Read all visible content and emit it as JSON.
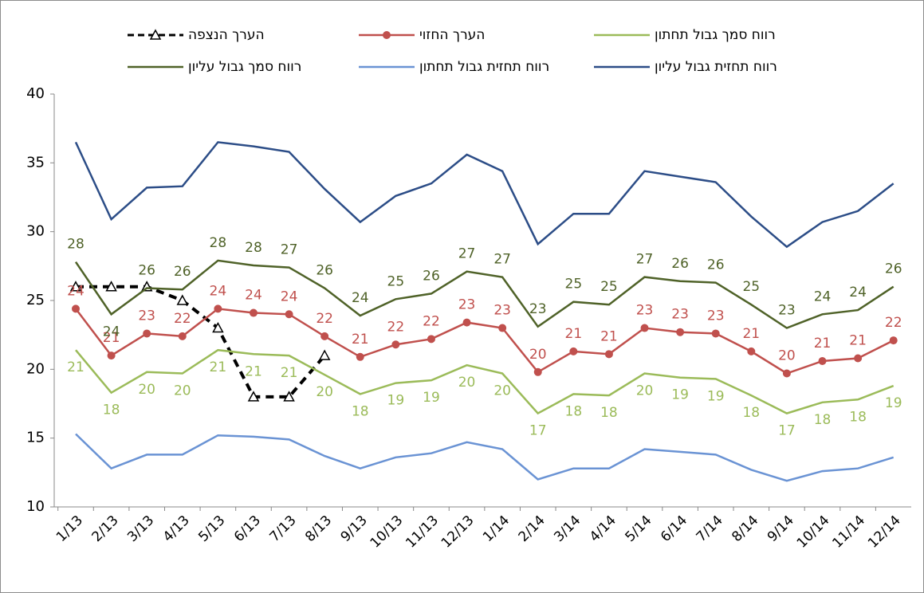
{
  "chart_data": {
    "type": "line",
    "categories": [
      "1/13",
      "2/13",
      "3/13",
      "4/13",
      "5/13",
      "6/13",
      "7/13",
      "8/13",
      "9/13",
      "10/13",
      "11/13",
      "12/13",
      "1/14",
      "2/14",
      "3/14",
      "4/14",
      "5/14",
      "6/14",
      "7/14",
      "8/14",
      "9/14",
      "10/14",
      "11/14",
      "12/14"
    ],
    "ylim": [
      10,
      40
    ],
    "yticks": [
      10,
      15,
      20,
      25,
      30,
      35,
      40
    ],
    "grid": false,
    "legend": "top",
    "series": [
      {
        "name": "הערך הנצפה",
        "color": "#000000",
        "dash": true,
        "marker": "triangle",
        "values": [
          26,
          26,
          26,
          25,
          23,
          18,
          18,
          21,
          null,
          null,
          null,
          null,
          null,
          null,
          null,
          null,
          null,
          null,
          null,
          null,
          null,
          null,
          null,
          null
        ]
      },
      {
        "name": "הערך החזוי",
        "color": "#c0504d",
        "marker": "circle",
        "values": [
          24.4,
          21.0,
          22.6,
          22.4,
          24.4,
          24.1,
          24.0,
          22.4,
          20.9,
          21.8,
          22.2,
          23.4,
          23.0,
          19.8,
          21.3,
          21.1,
          23.0,
          22.7,
          22.6,
          21.3,
          19.7,
          20.6,
          20.8,
          22.1
        ],
        "value_labels": [
          "24",
          "21",
          "23",
          "22",
          "24",
          "24",
          "24",
          "22",
          "21",
          "22",
          "22",
          "23",
          "23",
          "20",
          "21",
          "21",
          "23",
          "23",
          "23",
          "21",
          "20",
          "21",
          "21",
          "22"
        ]
      },
      {
        "name": "רווח סמך גבול תחתון",
        "color": "#9bbb59",
        "values": [
          21.4,
          18.3,
          19.8,
          19.7,
          21.4,
          21.1,
          21.0,
          19.6,
          18.2,
          19.0,
          19.2,
          20.3,
          19.7,
          16.8,
          18.2,
          18.1,
          19.7,
          19.4,
          19.3,
          18.1,
          16.8,
          17.6,
          17.8,
          18.8
        ],
        "value_labels": [
          "21",
          "18",
          "20",
          "20",
          "21",
          "21",
          "21",
          "20",
          "18",
          "19",
          "19",
          "20",
          "20",
          "17",
          "18",
          "18",
          "20",
          "19",
          "19",
          "18",
          "17",
          "18",
          "18",
          "19"
        ]
      },
      {
        "name": "רווח סמך גבול עליון",
        "color": "#4f6228",
        "values": [
          27.8,
          24.0,
          25.9,
          25.8,
          27.9,
          27.55,
          27.4,
          25.9,
          23.9,
          25.1,
          25.5,
          27.1,
          26.7,
          23.1,
          24.9,
          24.7,
          26.7,
          26.4,
          26.3,
          24.7,
          23.0,
          24.0,
          24.3,
          26.0
        ],
        "value_labels": [
          "28",
          "24",
          "26",
          "26",
          "28",
          "28",
          "27",
          "26",
          "24",
          "25",
          "26",
          "27",
          "27",
          "23",
          "25",
          "25",
          "27",
          "26",
          "26",
          "25",
          "23",
          "24",
          "24",
          "26"
        ]
      },
      {
        "name": "רווח תחזית גבול תחתון",
        "color": "#6a93d4",
        "values": [
          15.3,
          12.8,
          13.8,
          13.8,
          15.2,
          15.1,
          14.9,
          13.7,
          12.8,
          13.6,
          13.9,
          14.7,
          14.2,
          12.0,
          12.8,
          12.8,
          14.2,
          14.0,
          13.8,
          12.7,
          11.9,
          12.6,
          12.8,
          13.6
        ]
      },
      {
        "name": "רווח תחזית גבול עליון",
        "color": "#2c4d87",
        "values": [
          36.5,
          30.9,
          33.2,
          33.3,
          36.5,
          36.2,
          35.8,
          33.1,
          30.7,
          32.6,
          33.5,
          35.6,
          34.4,
          29.1,
          31.3,
          31.3,
          34.4,
          34.0,
          33.6,
          31.1,
          28.9,
          30.7,
          31.5,
          33.5
        ]
      }
    ]
  }
}
